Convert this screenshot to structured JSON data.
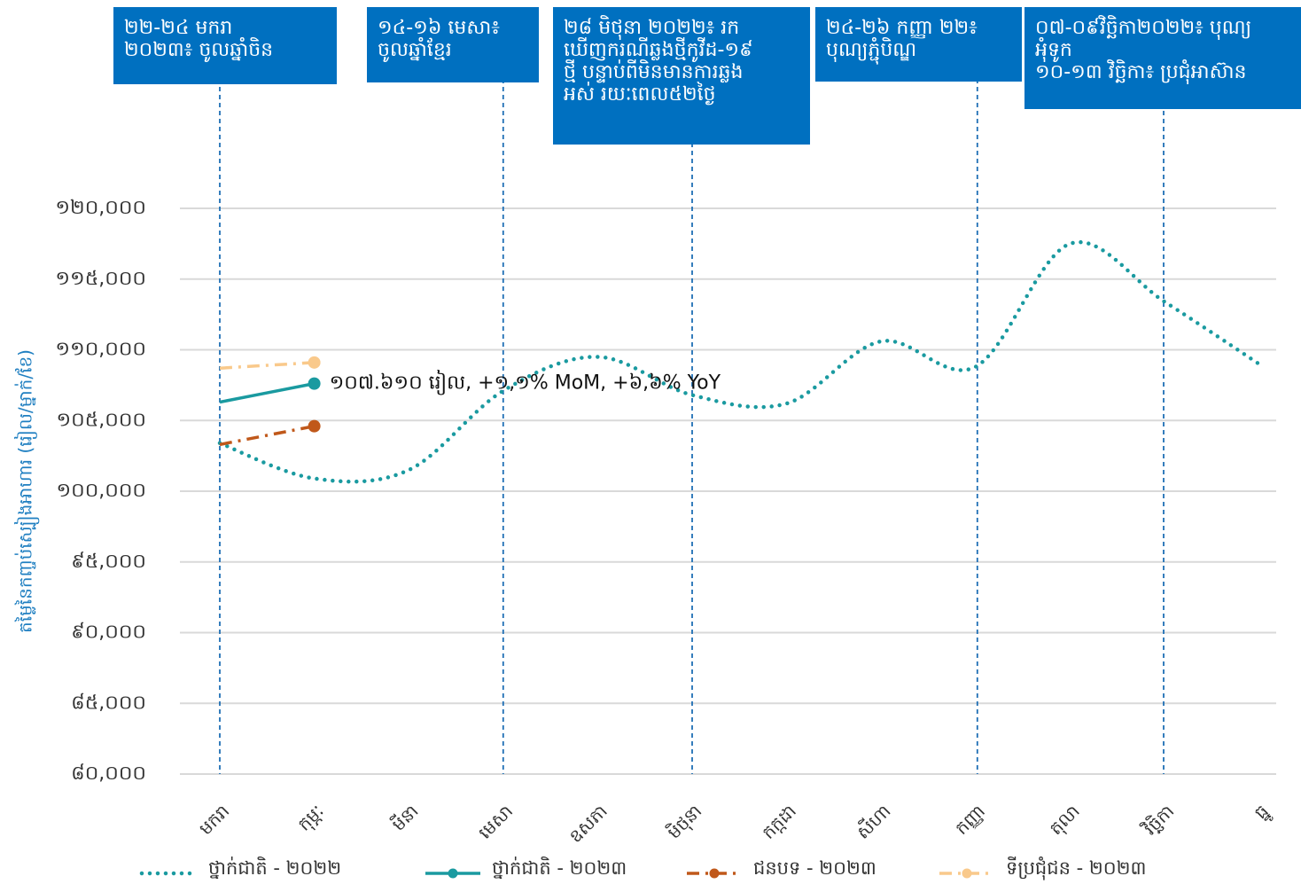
{
  "chart_data": {
    "type": "line",
    "y_label": "តម្លៃនៃកញ្ចប់ស្បៀងអាហារ (រៀល/ម្នាក់/ខែ)",
    "categories": [
      "មករា",
      "កុម្ភៈ",
      "មីនា",
      "មេសា",
      "ឧសភា",
      "មិថុនា",
      "កក្កដា",
      "សីហា",
      "កញ្ញា",
      "តុលា",
      "វិច្ឆិកា",
      "ធ្នូ"
    ],
    "ylim": [
      80000,
      120000
    ],
    "yticks": [
      {
        "value": 80000,
        "label": "៨០,០០០"
      },
      {
        "value": 85000,
        "label": "៨៥,០០០"
      },
      {
        "value": 90000,
        "label": "៩០,០០០"
      },
      {
        "value": 95000,
        "label": "៩៥,០០០"
      },
      {
        "value": 100000,
        "label": "១០០,០០០"
      },
      {
        "value": 105000,
        "label": "១០៥,០០០"
      },
      {
        "value": 110000,
        "label": "១១០,០០០"
      },
      {
        "value": 115000,
        "label": "១១៥,០០០"
      },
      {
        "value": 120000,
        "label": "១២០,០០០"
      }
    ],
    "grid": true,
    "series": [
      {
        "name": "ថ្នាក់ជាតិ - ២០២២",
        "color": "#1a9aa0",
        "style": "dotted",
        "values": [
          103400,
          100900,
          101500,
          107100,
          109500,
          106800,
          106200,
          110600,
          108800,
          117500,
          113400,
          109000
        ]
      },
      {
        "name": "ថ្នាក់ជាតិ - ២០២៣",
        "color": "#1a9aa0",
        "style": "solid",
        "values": [
          106300,
          107610,
          null,
          null,
          null,
          null,
          null,
          null,
          null,
          null,
          null,
          null
        ]
      },
      {
        "name": "ជនបទ - ២០២៣",
        "color": "#c0581a",
        "style": "dashdot",
        "values": [
          103300,
          104600,
          null,
          null,
          null,
          null,
          null,
          null,
          null,
          null,
          null,
          null
        ]
      },
      {
        "name": "ទីប្រជុំជន - ២០២៣",
        "color": "#f9c98b",
        "style": "dashdot",
        "values": [
          108700,
          109100,
          null,
          null,
          null,
          null,
          null,
          null,
          null,
          null,
          null,
          null
        ]
      }
    ],
    "point_label": "១០៧.៦១០ រៀល, +១,១% MoM, +៦,៦% YoY",
    "annotations": [
      {
        "x": "មករា",
        "lines": [
          "២២-២៤ មករា",
          "២០២៣៖ ចូលឆ្នាំចិន"
        ]
      },
      {
        "x": "មេសា",
        "lines": [
          "១៤-១៦ មេសា៖",
          "ចូលឆ្នាំខ្មែរ"
        ]
      },
      {
        "x": "មិថុនា",
        "lines": [
          "២៨ មិថុនា ២០២២៖ រក",
          "ឃើញករណីឆ្លងថ្មីកូវីដ-១៩",
          "ថ្មី បន្ទាប់ពីមិនមានការឆ្លង",
          "អស់ រយៈពេល៥២ថ្ងៃ"
        ]
      },
      {
        "x": "កញ្ញា",
        "lines": [
          "២៤-២៦ កញ្ញា ២២៖",
          "បុណ្យភ្ជុំបិណ្ឌ"
        ]
      },
      {
        "x": "វិច្ឆិកា",
        "lines": [
          "០៧-០៩វិច្ឆិកា២០២២៖ បុណ្យ",
          "អុំទូក",
          "១០-១៣ វិច្ឆិកា៖ ប្រជុំអាស៊ាន"
        ]
      }
    ]
  }
}
